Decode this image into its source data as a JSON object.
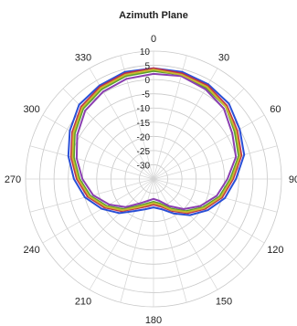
{
  "chart_data": {
    "type": "polar-line",
    "title": "Azimuth Plane",
    "angle_ticks": [
      "0",
      "30",
      "60",
      "90",
      "120",
      "150",
      "180",
      "210",
      "240",
      "270",
      "300",
      "330"
    ],
    "angle_tick_values": [
      0,
      30,
      60,
      90,
      120,
      150,
      180,
      210,
      240,
      270,
      300,
      330
    ],
    "radial_ticks": [
      "10",
      "5",
      "0",
      "-5",
      "-10",
      "-15",
      "-20",
      "-25",
      "-30"
    ],
    "radial_tick_values": [
      10,
      5,
      0,
      -5,
      -10,
      -15,
      -20,
      -25,
      -30
    ],
    "rlim": [
      -35,
      10
    ],
    "angle_step_deg": 15,
    "grid": true,
    "series": [
      {
        "color": "#2a4fd6",
        "points": [
          [
            0,
            4
          ],
          [
            15,
            4
          ],
          [
            30,
            3.5
          ],
          [
            45,
            2.5
          ],
          [
            60,
            0
          ],
          [
            75,
            -2
          ],
          [
            90,
            -6
          ],
          [
            105,
            -9
          ],
          [
            120,
            -13
          ],
          [
            135,
            -17
          ],
          [
            150,
            -21
          ],
          [
            165,
            -24
          ],
          [
            180,
            -25
          ],
          [
            195,
            -24
          ],
          [
            210,
            -22
          ],
          [
            225,
            -18
          ],
          [
            240,
            -14
          ],
          [
            255,
            -10
          ],
          [
            270,
            -7
          ],
          [
            285,
            -4
          ],
          [
            300,
            -1
          ],
          [
            315,
            2
          ],
          [
            330,
            3
          ],
          [
            345,
            4
          ]
        ]
      },
      {
        "color": "#c0304a",
        "points": [
          [
            0,
            4
          ],
          [
            15,
            3.5
          ],
          [
            30,
            3
          ],
          [
            45,
            1.5
          ],
          [
            60,
            -1
          ],
          [
            75,
            -3
          ],
          [
            90,
            -7
          ],
          [
            105,
            -10
          ],
          [
            120,
            -14
          ],
          [
            135,
            -18
          ],
          [
            150,
            -22
          ],
          [
            165,
            -25
          ],
          [
            180,
            -26
          ],
          [
            195,
            -25
          ],
          [
            210,
            -23
          ],
          [
            225,
            -19
          ],
          [
            240,
            -15
          ],
          [
            255,
            -11
          ],
          [
            270,
            -8
          ],
          [
            285,
            -5
          ],
          [
            300,
            -2
          ],
          [
            315,
            1
          ],
          [
            330,
            2.5
          ],
          [
            345,
            3.5
          ]
        ]
      },
      {
        "color": "#5aa02c",
        "points": [
          [
            0,
            3
          ],
          [
            15,
            3
          ],
          [
            30,
            2
          ],
          [
            45,
            1
          ],
          [
            60,
            -2
          ],
          [
            75,
            -4
          ],
          [
            90,
            -8
          ],
          [
            105,
            -11
          ],
          [
            120,
            -15
          ],
          [
            135,
            -19
          ],
          [
            150,
            -23
          ],
          [
            165,
            -26
          ],
          [
            180,
            -27
          ],
          [
            195,
            -26
          ],
          [
            210,
            -24
          ],
          [
            225,
            -20
          ],
          [
            240,
            -16
          ],
          [
            255,
            -12
          ],
          [
            270,
            -9
          ],
          [
            285,
            -6
          ],
          [
            300,
            -3
          ],
          [
            315,
            0
          ],
          [
            330,
            1.5
          ],
          [
            345,
            2.5
          ]
        ]
      },
      {
        "color": "#8a3fb0",
        "points": [
          [
            0,
            2
          ],
          [
            15,
            2.5
          ],
          [
            30,
            1.5
          ],
          [
            45,
            0
          ],
          [
            60,
            -3
          ],
          [
            75,
            -5
          ],
          [
            90,
            -9
          ],
          [
            105,
            -12
          ],
          [
            120,
            -16
          ],
          [
            135,
            -20
          ],
          [
            150,
            -24
          ],
          [
            165,
            -27
          ],
          [
            180,
            -28
          ],
          [
            195,
            -27
          ],
          [
            210,
            -25
          ],
          [
            225,
            -21
          ],
          [
            240,
            -17
          ],
          [
            255,
            -13
          ],
          [
            270,
            -10
          ],
          [
            285,
            -7
          ],
          [
            300,
            -4
          ],
          [
            315,
            -1
          ],
          [
            330,
            0.5
          ],
          [
            345,
            1.5
          ]
        ]
      },
      {
        "color": "#c8b830",
        "points": [
          [
            0,
            3.5
          ],
          [
            15,
            3
          ],
          [
            30,
            2.5
          ],
          [
            45,
            1
          ],
          [
            60,
            -1.5
          ],
          [
            75,
            -3.5
          ],
          [
            90,
            -7.5
          ],
          [
            105,
            -10.5
          ],
          [
            120,
            -14.5
          ],
          [
            135,
            -18.5
          ],
          [
            150,
            -22.5
          ],
          [
            165,
            -25.5
          ],
          [
            180,
            -26.5
          ],
          [
            195,
            -25.5
          ],
          [
            210,
            -23.5
          ],
          [
            225,
            -19.5
          ],
          [
            240,
            -15.5
          ],
          [
            255,
            -11.5
          ],
          [
            270,
            -8.5
          ],
          [
            285,
            -5.5
          ],
          [
            300,
            -2.5
          ],
          [
            315,
            0.5
          ],
          [
            330,
            2
          ],
          [
            345,
            3
          ]
        ]
      }
    ]
  }
}
